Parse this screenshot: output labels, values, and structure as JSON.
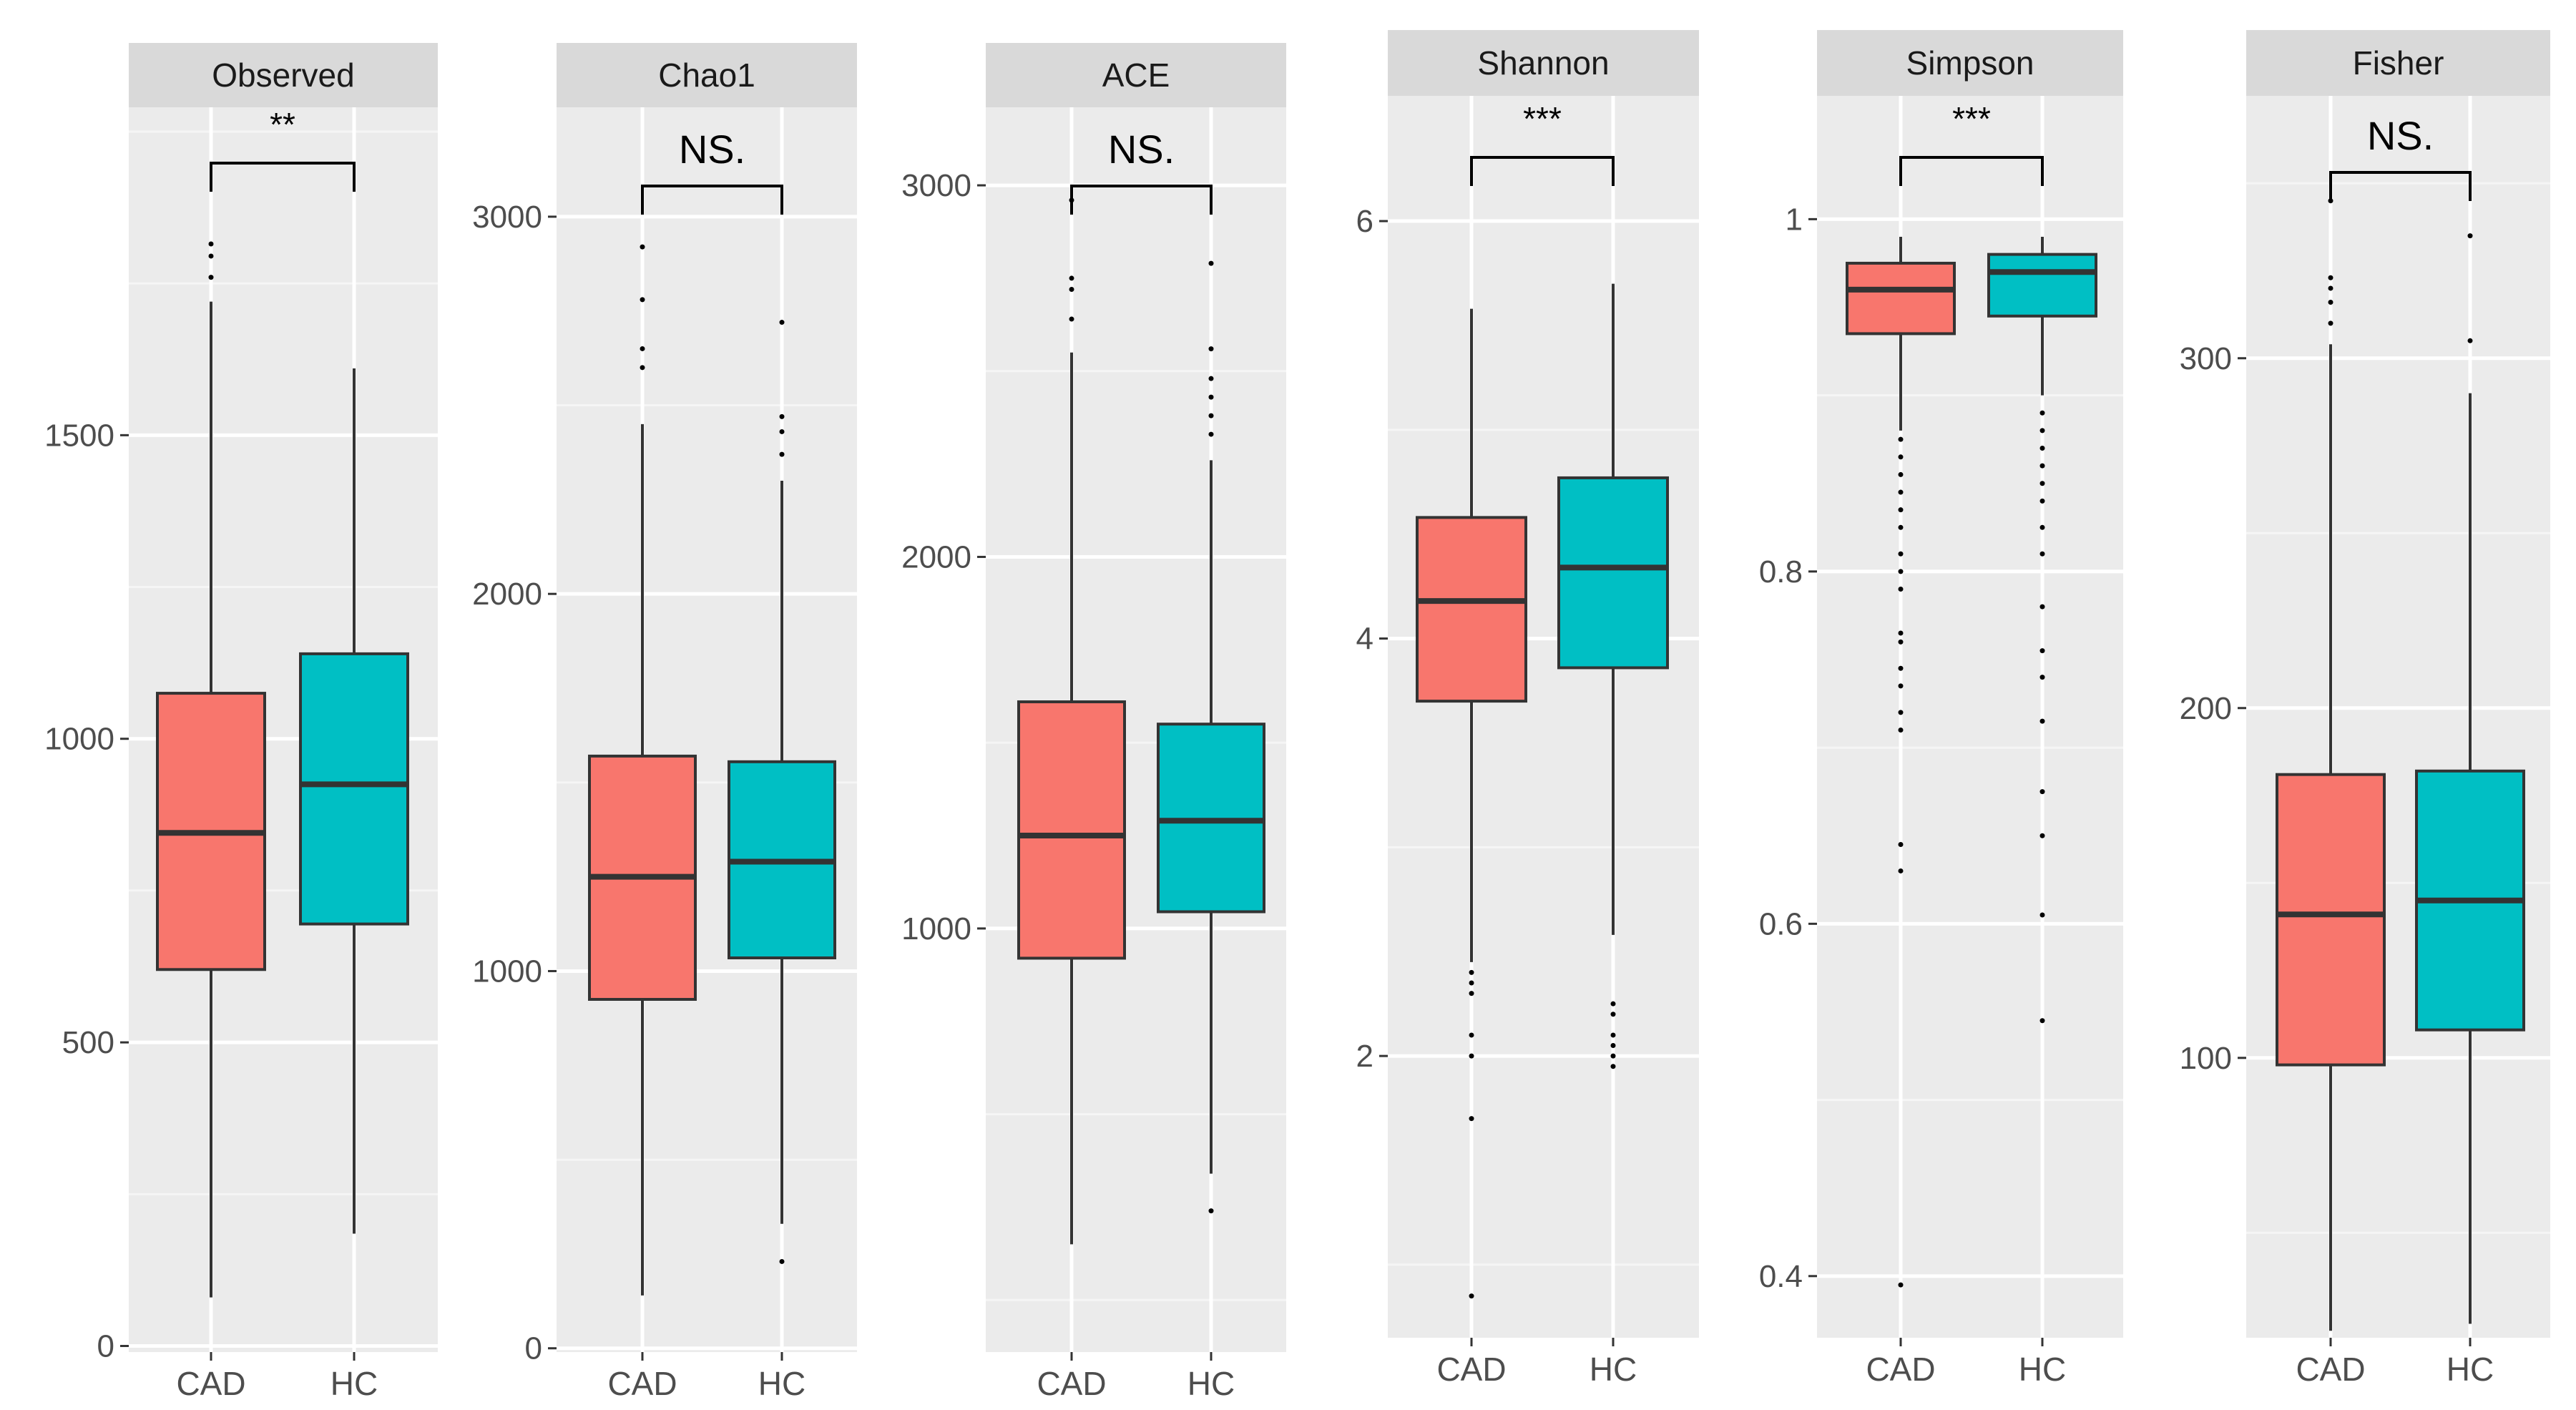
{
  "colors": {
    "panel_bg": "#EBEBEB",
    "strip_bg": "#D9D9D9",
    "grid_major": "#FFFFFF",
    "grid_minor": "#F5F5F5",
    "box_outline": "#333333",
    "CAD": "#F8766D",
    "HC": "#00BFC4"
  },
  "chart_data": [
    {
      "type": "box",
      "title": "Observed",
      "categories": [
        "CAD",
        "HC"
      ],
      "ylim": [
        -10,
        2040
      ],
      "yticks": [
        0,
        500,
        1000,
        1500
      ],
      "grid": true,
      "significance": "**",
      "series": [
        {
          "name": "CAD",
          "whisker_low": 80,
          "q1": 620,
          "median": 845,
          "q3": 1075,
          "whisker_high": 1720,
          "outliers": [
            1760,
            1795,
            1815
          ]
        },
        {
          "name": "HC",
          "whisker_low": 185,
          "q1": 695,
          "median": 925,
          "q3": 1140,
          "whisker_high": 1610,
          "outliers": []
        }
      ]
    },
    {
      "type": "box",
      "title": "Chao1",
      "categories": [
        "CAD",
        "HC"
      ],
      "ylim": [
        -10,
        3290
      ],
      "yticks": [
        0,
        1000,
        2000,
        3000
      ],
      "grid": true,
      "significance": "NS.",
      "series": [
        {
          "name": "CAD",
          "whisker_low": 140,
          "q1": 925,
          "median": 1250,
          "q3": 1570,
          "whisker_high": 2450,
          "outliers": [
            2600,
            2650,
            2780,
            2920
          ]
        },
        {
          "name": "HC",
          "whisker_low": 330,
          "q1": 1035,
          "median": 1290,
          "q3": 1555,
          "whisker_high": 2300,
          "outliers": [
            230,
            2370,
            2430,
            2470,
            2720
          ]
        }
      ]
    },
    {
      "type": "box",
      "title": "ACE",
      "categories": [
        "CAD",
        "HC"
      ],
      "ylim": [
        -140,
        3210
      ],
      "yticks": [
        1000,
        2000,
        3000
      ],
      "grid": true,
      "significance": "NS.",
      "series": [
        {
          "name": "CAD",
          "whisker_low": 150,
          "q1": 920,
          "median": 1250,
          "q3": 1610,
          "whisker_high": 2550,
          "outliers": [
            2640,
            2720,
            2750,
            2960
          ]
        },
        {
          "name": "HC",
          "whisker_low": 340,
          "q1": 1045,
          "median": 1290,
          "q3": 1550,
          "whisker_high": 2260,
          "outliers": [
            240,
            2330,
            2380,
            2430,
            2480,
            2560,
            2790
          ]
        }
      ]
    },
    {
      "type": "box",
      "title": "Shannon",
      "categories": [
        "CAD",
        "HC"
      ],
      "ylim": [
        0.65,
        6.6
      ],
      "yticks": [
        2,
        4,
        6
      ],
      "grid": true,
      "significance": "***",
      "series": [
        {
          "name": "CAD",
          "whisker_low": 2.45,
          "q1": 3.7,
          "median": 4.18,
          "q3": 4.58,
          "whisker_high": 5.58,
          "outliers": [
            0.85,
            1.7,
            2.0,
            2.1,
            2.3,
            2.35,
            2.4
          ]
        },
        {
          "name": "HC",
          "whisker_low": 2.58,
          "q1": 3.86,
          "median": 4.34,
          "q3": 4.77,
          "whisker_high": 5.7,
          "outliers": [
            1.95,
            2.0,
            2.05,
            2.1,
            2.2,
            2.25
          ]
        }
      ]
    },
    {
      "type": "box",
      "title": "Simpson",
      "categories": [
        "CAD",
        "HC"
      ],
      "ylim": [
        0.365,
        1.07
      ],
      "yticks": [
        0.4,
        0.6,
        0.8,
        1.0
      ],
      "grid": true,
      "significance": "***",
      "series": [
        {
          "name": "CAD",
          "whisker_low": 0.88,
          "q1": 0.935,
          "median": 0.96,
          "q3": 0.975,
          "whisker_high": 0.99,
          "outliers": [
            0.395,
            0.63,
            0.645,
            0.71,
            0.72,
            0.735,
            0.745,
            0.76,
            0.765,
            0.79,
            0.8,
            0.81,
            0.825,
            0.835,
            0.845,
            0.855,
            0.865,
            0.875
          ]
        },
        {
          "name": "HC",
          "whisker_low": 0.9,
          "q1": 0.945,
          "median": 0.97,
          "q3": 0.98,
          "whisker_high": 0.99,
          "outliers": [
            0.545,
            0.605,
            0.65,
            0.675,
            0.715,
            0.74,
            0.755,
            0.78,
            0.81,
            0.825,
            0.84,
            0.85,
            0.86,
            0.87,
            0.88,
            0.89
          ]
        }
      ]
    },
    {
      "type": "box",
      "title": "Fisher",
      "categories": [
        "CAD",
        "HC"
      ],
      "ylim": [
        20,
        375
      ],
      "yticks": [
        100,
        200,
        300
      ],
      "grid": true,
      "significance": "NS.",
      "series": [
        {
          "name": "CAD",
          "whisker_low": 22,
          "q1": 98,
          "median": 141,
          "q3": 181,
          "whisker_high": 304,
          "outliers": [
            310,
            316,
            320,
            323,
            345
          ]
        },
        {
          "name": "HC",
          "whisker_low": 24,
          "q1": 108,
          "median": 145,
          "q3": 182,
          "whisker_high": 290,
          "outliers": [
            305,
            335
          ]
        }
      ]
    }
  ]
}
